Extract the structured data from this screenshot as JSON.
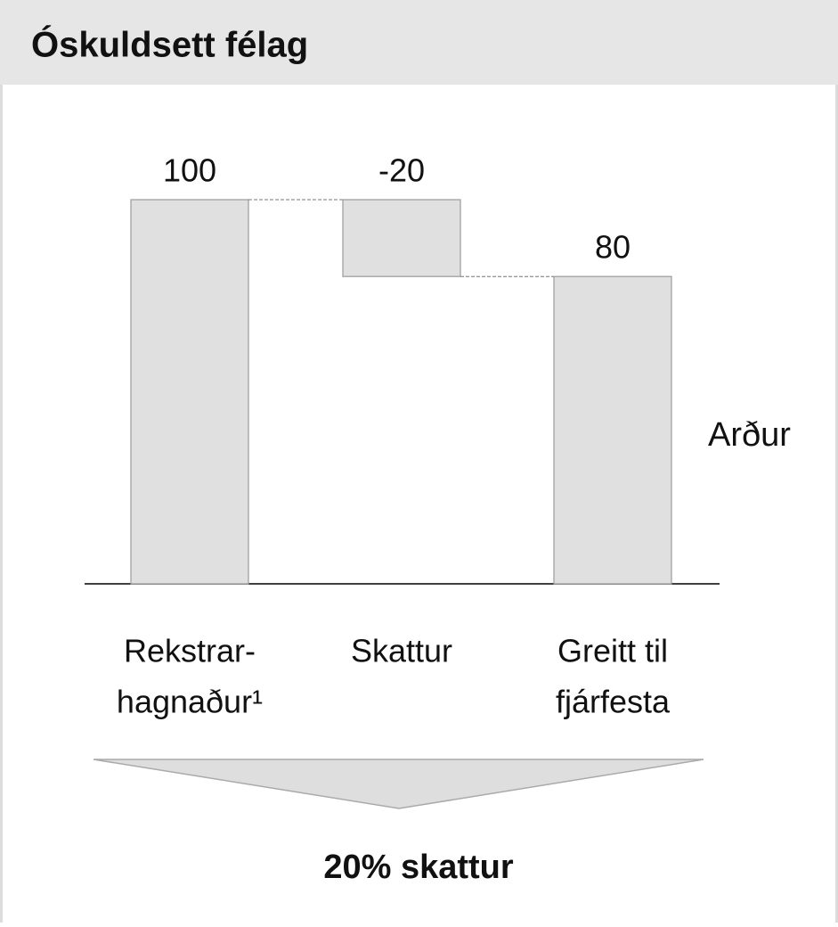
{
  "chart_data": {
    "type": "waterfall",
    "title": "Óskuldsett félag",
    "categories": [
      [
        "Rekstrar-",
        "hagnaður¹"
      ],
      [
        "Skattur"
      ],
      [
        "Greitt til",
        "fjárfesta"
      ]
    ],
    "values": [
      100,
      -20,
      80
    ],
    "measure": [
      "absolute",
      "relative",
      "total"
    ],
    "ylim": [
      0,
      100
    ],
    "color": "#e0e0e0",
    "annotations": [
      "Arður",
      "20% skattur"
    ]
  }
}
